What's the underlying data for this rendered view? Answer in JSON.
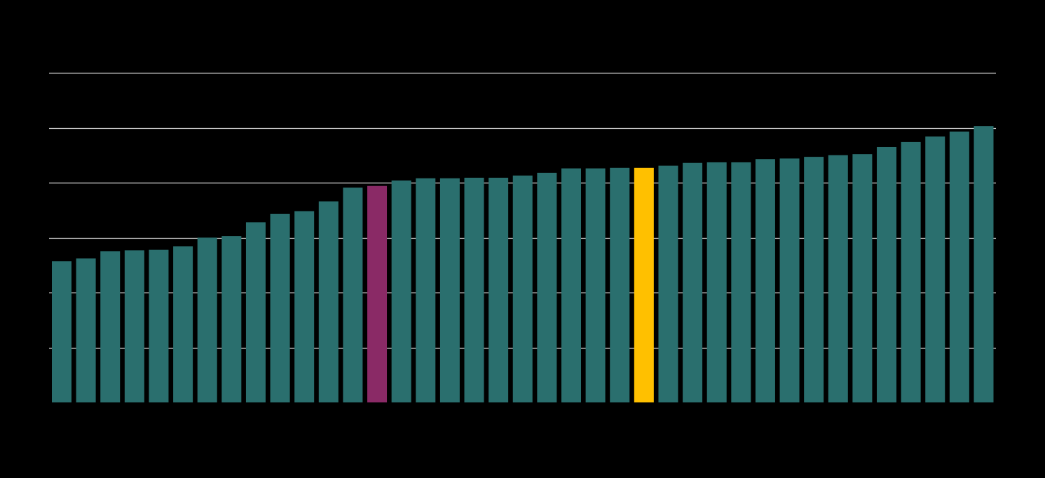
{
  "chart_data": {
    "type": "bar",
    "title": "",
    "xlabel": "",
    "ylabel": "",
    "ylim": [
      0,
      60
    ],
    "gridlines": [
      10,
      20,
      30,
      40,
      50,
      60
    ],
    "grid": true,
    "legend": "none",
    "colors": {
      "background": "#000000",
      "default_bar": "#2a6f6e",
      "highlight_1": "#8a2a66",
      "highlight_2": "#ffc000",
      "gridline": "#d9d9d9"
    },
    "highlights": [
      {
        "index": 13,
        "color_key": "highlight_1"
      },
      {
        "index": 24,
        "color_key": "highlight_2"
      }
    ],
    "values": [
      25.7,
      26.2,
      27.5,
      27.7,
      27.8,
      28.4,
      30.0,
      30.3,
      32.8,
      34.3,
      34.8,
      36.6,
      39.1,
      39.4,
      40.4,
      40.8,
      40.8,
      40.9,
      40.9,
      41.3,
      41.8,
      42.6,
      42.6,
      42.7,
      42.7,
      43.1,
      43.6,
      43.7,
      43.7,
      44.3,
      44.4,
      44.7,
      45.0,
      45.2,
      46.5,
      47.4,
      48.4,
      49.3,
      50.3
    ]
  }
}
